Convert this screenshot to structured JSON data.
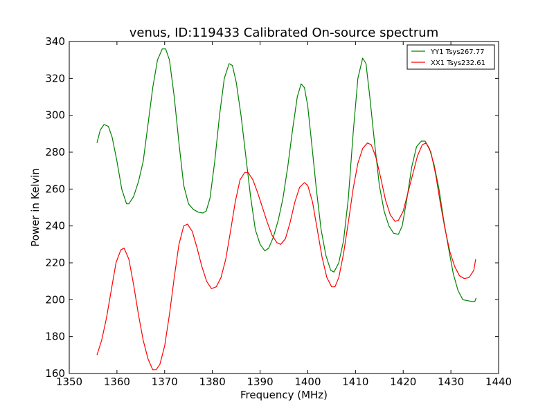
{
  "chart_data": {
    "type": "line",
    "title": "venus, ID:119433 Calibrated On-source spectrum",
    "xlabel": "Frequency (MHz)",
    "ylabel": "Power in Kelvin",
    "xlim": [
      1350,
      1440
    ],
    "ylim": [
      160,
      340
    ],
    "xticks": [
      1350,
      1360,
      1370,
      1380,
      1390,
      1400,
      1410,
      1420,
      1430,
      1440
    ],
    "yticks": [
      160,
      180,
      200,
      220,
      240,
      260,
      280,
      300,
      320,
      340
    ],
    "grid": false,
    "legend_position": "top-right",
    "series": [
      {
        "name": "YY1 Tsys267.77",
        "color": "#008000",
        "points": [
          [
            1355.8,
            285
          ],
          [
            1356.5,
            292
          ],
          [
            1357.3,
            295
          ],
          [
            1358.2,
            294
          ],
          [
            1359.0,
            288
          ],
          [
            1360.0,
            275
          ],
          [
            1361.0,
            260
          ],
          [
            1362.0,
            252
          ],
          [
            1362.5,
            252
          ],
          [
            1363.5,
            256
          ],
          [
            1364.5,
            264
          ],
          [
            1365.5,
            275
          ],
          [
            1366.5,
            295
          ],
          [
            1367.5,
            315
          ],
          [
            1368.5,
            330
          ],
          [
            1369.5,
            336
          ],
          [
            1370.2,
            336
          ],
          [
            1371.0,
            330
          ],
          [
            1372.0,
            310
          ],
          [
            1373.0,
            285
          ],
          [
            1374.0,
            262
          ],
          [
            1375.0,
            252
          ],
          [
            1376.0,
            249
          ],
          [
            1377.0,
            247.5
          ],
          [
            1378.0,
            247
          ],
          [
            1378.7,
            248
          ],
          [
            1379.5,
            255
          ],
          [
            1380.5,
            275
          ],
          [
            1381.5,
            300
          ],
          [
            1382.5,
            320
          ],
          [
            1383.5,
            328
          ],
          [
            1384.2,
            327
          ],
          [
            1385.0,
            318
          ],
          [
            1386.0,
            300
          ],
          [
            1387.0,
            278
          ],
          [
            1388.0,
            256
          ],
          [
            1389.0,
            238
          ],
          [
            1390.0,
            230
          ],
          [
            1391.0,
            226.5
          ],
          [
            1391.8,
            228
          ],
          [
            1392.8,
            234
          ],
          [
            1393.8,
            243
          ],
          [
            1394.8,
            255
          ],
          [
            1395.8,
            272
          ],
          [
            1396.8,
            292
          ],
          [
            1397.8,
            310
          ],
          [
            1398.6,
            317
          ],
          [
            1399.3,
            315
          ],
          [
            1400.0,
            305
          ],
          [
            1400.8,
            285
          ],
          [
            1401.8,
            260
          ],
          [
            1402.8,
            238
          ],
          [
            1403.8,
            224
          ],
          [
            1404.8,
            216
          ],
          [
            1405.5,
            215
          ],
          [
            1406.5,
            220
          ],
          [
            1407.5,
            232
          ],
          [
            1408.5,
            255
          ],
          [
            1409.5,
            290
          ],
          [
            1410.5,
            320
          ],
          [
            1411.5,
            331
          ],
          [
            1412.2,
            328
          ],
          [
            1413.0,
            310
          ],
          [
            1414.0,
            285
          ],
          [
            1415.0,
            262
          ],
          [
            1416.0,
            248
          ],
          [
            1417.0,
            240
          ],
          [
            1418.0,
            236
          ],
          [
            1419.0,
            235.5
          ],
          [
            1419.8,
            240
          ],
          [
            1420.8,
            255
          ],
          [
            1421.8,
            272
          ],
          [
            1422.8,
            283
          ],
          [
            1423.8,
            286
          ],
          [
            1424.6,
            286
          ],
          [
            1425.5,
            282
          ],
          [
            1426.5,
            273
          ],
          [
            1427.5,
            260
          ],
          [
            1428.5,
            243
          ],
          [
            1429.5,
            228
          ],
          [
            1430.5,
            214
          ],
          [
            1431.5,
            205
          ],
          [
            1432.5,
            200
          ],
          [
            1433.5,
            199.5
          ],
          [
            1434.5,
            199
          ],
          [
            1435.0,
            199
          ],
          [
            1435.3,
            201
          ]
        ]
      },
      {
        "name": "XX1 Tsys232.61",
        "color": "#ff0000",
        "points": [
          [
            1355.8,
            170
          ],
          [
            1356.8,
            178
          ],
          [
            1357.8,
            190
          ],
          [
            1358.8,
            205
          ],
          [
            1359.8,
            220
          ],
          [
            1360.8,
            227
          ],
          [
            1361.5,
            228
          ],
          [
            1362.5,
            222
          ],
          [
            1363.5,
            208
          ],
          [
            1364.5,
            192
          ],
          [
            1365.5,
            178
          ],
          [
            1366.5,
            168
          ],
          [
            1367.5,
            162
          ],
          [
            1368.2,
            162
          ],
          [
            1369.0,
            165
          ],
          [
            1370.0,
            175
          ],
          [
            1371.0,
            192
          ],
          [
            1372.0,
            212
          ],
          [
            1373.0,
            230
          ],
          [
            1374.0,
            240
          ],
          [
            1374.8,
            241
          ],
          [
            1375.8,
            237
          ],
          [
            1376.8,
            228
          ],
          [
            1377.8,
            218
          ],
          [
            1378.8,
            210
          ],
          [
            1379.8,
            206
          ],
          [
            1380.8,
            207
          ],
          [
            1381.8,
            212
          ],
          [
            1382.8,
            222
          ],
          [
            1383.8,
            237
          ],
          [
            1384.8,
            253
          ],
          [
            1385.8,
            265
          ],
          [
            1386.8,
            269
          ],
          [
            1387.5,
            269
          ],
          [
            1388.5,
            265
          ],
          [
            1389.5,
            258
          ],
          [
            1390.5,
            250
          ],
          [
            1391.5,
            242
          ],
          [
            1392.5,
            235
          ],
          [
            1393.5,
            231
          ],
          [
            1394.3,
            230
          ],
          [
            1395.3,
            233
          ],
          [
            1396.3,
            242
          ],
          [
            1397.3,
            253
          ],
          [
            1398.3,
            261
          ],
          [
            1399.3,
            263.5
          ],
          [
            1400.0,
            262
          ],
          [
            1401.0,
            253
          ],
          [
            1402.0,
            238
          ],
          [
            1403.0,
            223
          ],
          [
            1404.0,
            212
          ],
          [
            1405.0,
            207
          ],
          [
            1405.7,
            207
          ],
          [
            1406.5,
            212
          ],
          [
            1407.5,
            225
          ],
          [
            1408.5,
            242
          ],
          [
            1409.5,
            260
          ],
          [
            1410.5,
            274
          ],
          [
            1411.5,
            282
          ],
          [
            1412.5,
            285
          ],
          [
            1413.3,
            284
          ],
          [
            1414.3,
            277
          ],
          [
            1415.3,
            266
          ],
          [
            1416.3,
            254
          ],
          [
            1417.3,
            246
          ],
          [
            1418.3,
            242.5
          ],
          [
            1419.0,
            243
          ],
          [
            1420.0,
            248
          ],
          [
            1421.0,
            258
          ],
          [
            1422.0,
            268
          ],
          [
            1423.0,
            278
          ],
          [
            1424.0,
            284
          ],
          [
            1424.8,
            285
          ],
          [
            1425.8,
            280
          ],
          [
            1426.8,
            268
          ],
          [
            1427.8,
            252
          ],
          [
            1428.8,
            238
          ],
          [
            1429.8,
            226
          ],
          [
            1430.8,
            218
          ],
          [
            1431.8,
            213
          ],
          [
            1432.8,
            211.5
          ],
          [
            1433.8,
            212
          ],
          [
            1434.8,
            216
          ],
          [
            1435.2,
            222
          ]
        ]
      }
    ]
  }
}
